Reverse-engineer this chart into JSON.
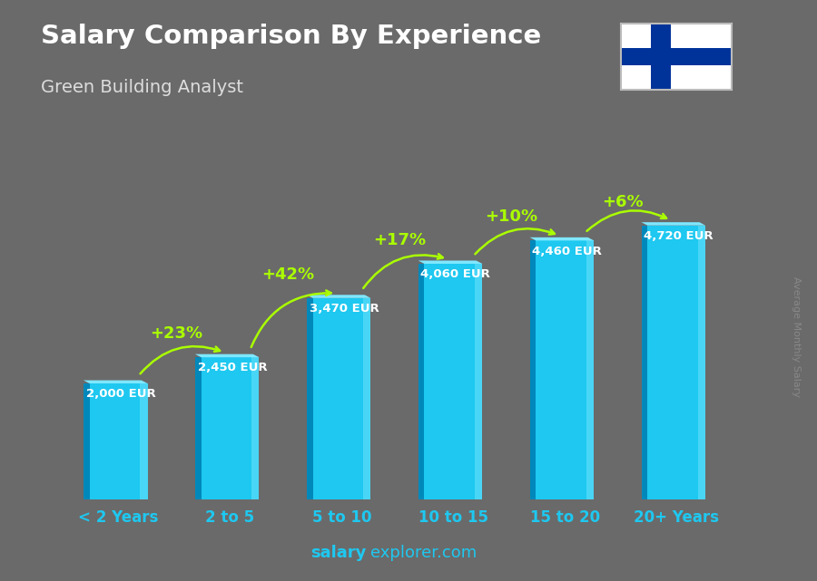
{
  "title": "Salary Comparison By Experience",
  "subtitle": "Green Building Analyst",
  "categories": [
    "< 2 Years",
    "2 to 5",
    "5 to 10",
    "10 to 15",
    "15 to 20",
    "20+ Years"
  ],
  "values": [
    2000,
    2450,
    3470,
    4060,
    4460,
    4720
  ],
  "value_labels": [
    "2,000 EUR",
    "2,450 EUR",
    "3,470 EUR",
    "4,060 EUR",
    "4,460 EUR",
    "4,720 EUR"
  ],
  "pct_labels": [
    "+23%",
    "+42%",
    "+17%",
    "+10%",
    "+6%"
  ],
  "bar_color_face": "#1ec8f0",
  "bar_color_light": "#7fe8ff",
  "bar_color_dark": "#0088bb",
  "bar_color_side": "#0099cc",
  "bg_color": "#6a6a6a",
  "title_color": "#ffffff",
  "subtitle_color": "#dddddd",
  "value_label_color": "#ffffff",
  "pct_color": "#aaff00",
  "xticklabel_color": "#1ec8f0",
  "footer_salary_color": "#1ec8f0",
  "footer_rest_color": "#1ec8f0",
  "ylabel_text": "Average Monthly Salary",
  "ylabel_color": "#888888",
  "flag_bg": "#ffffff",
  "flag_cross": "#003399",
  "y_max": 5600
}
